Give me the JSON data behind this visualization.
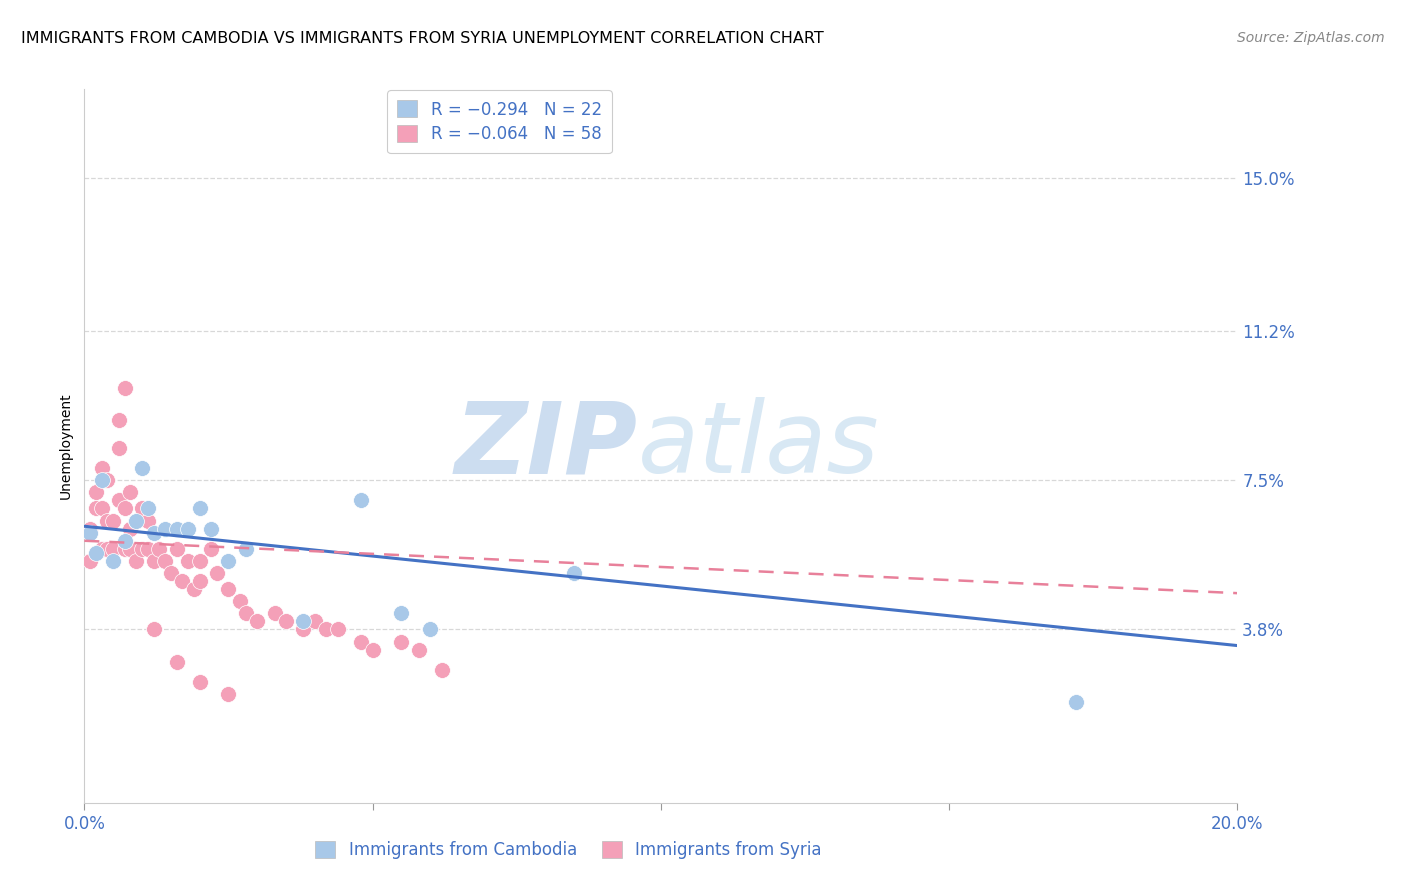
{
  "title": "IMMIGRANTS FROM CAMBODIA VS IMMIGRANTS FROM SYRIA UNEMPLOYMENT CORRELATION CHART",
  "source": "Source: ZipAtlas.com",
  "ylabel": "Unemployment",
  "watermark_zip": "ZIP",
  "watermark_atlas": "atlas",
  "legend": [
    {
      "label": "R = −0.294   N = 22",
      "color": "#a8c8e8"
    },
    {
      "label": "R = −0.064   N = 58",
      "color": "#f4a0b8"
    }
  ],
  "yticks": [
    3.8,
    7.5,
    11.2,
    15.0
  ],
  "xlim": [
    0.0,
    0.2
  ],
  "ylim": [
    -0.005,
    0.172
  ],
  "scatter_cambodia_x": [
    0.001,
    0.002,
    0.003,
    0.005,
    0.007,
    0.009,
    0.01,
    0.011,
    0.012,
    0.014,
    0.016,
    0.018,
    0.02,
    0.022,
    0.025,
    0.028,
    0.038,
    0.048,
    0.055,
    0.06,
    0.085,
    0.172
  ],
  "scatter_cambodia_y": [
    0.062,
    0.057,
    0.075,
    0.055,
    0.06,
    0.065,
    0.078,
    0.068,
    0.062,
    0.063,
    0.063,
    0.063,
    0.068,
    0.063,
    0.055,
    0.058,
    0.04,
    0.07,
    0.042,
    0.038,
    0.052,
    0.02
  ],
  "scatter_syria_x": [
    0.001,
    0.001,
    0.002,
    0.002,
    0.003,
    0.003,
    0.003,
    0.004,
    0.004,
    0.004,
    0.005,
    0.005,
    0.006,
    0.006,
    0.006,
    0.007,
    0.007,
    0.007,
    0.008,
    0.008,
    0.008,
    0.009,
    0.009,
    0.01,
    0.01,
    0.011,
    0.011,
    0.012,
    0.013,
    0.014,
    0.015,
    0.016,
    0.017,
    0.018,
    0.019,
    0.02,
    0.02,
    0.022,
    0.023,
    0.025,
    0.027,
    0.028,
    0.03,
    0.033,
    0.035,
    0.038,
    0.04,
    0.042,
    0.044,
    0.048,
    0.05,
    0.055,
    0.058,
    0.062,
    0.012,
    0.016,
    0.02,
    0.025
  ],
  "scatter_syria_y": [
    0.063,
    0.055,
    0.072,
    0.068,
    0.058,
    0.068,
    0.078,
    0.058,
    0.075,
    0.065,
    0.065,
    0.058,
    0.07,
    0.083,
    0.09,
    0.058,
    0.068,
    0.098,
    0.058,
    0.072,
    0.063,
    0.055,
    0.065,
    0.058,
    0.068,
    0.058,
    0.065,
    0.055,
    0.058,
    0.055,
    0.052,
    0.058,
    0.05,
    0.055,
    0.048,
    0.055,
    0.05,
    0.058,
    0.052,
    0.048,
    0.045,
    0.042,
    0.04,
    0.042,
    0.04,
    0.038,
    0.04,
    0.038,
    0.038,
    0.035,
    0.033,
    0.035,
    0.033,
    0.028,
    0.038,
    0.03,
    0.025,
    0.022
  ],
  "trendline_cambodia_x0": 0.0,
  "trendline_cambodia_y0": 0.0636,
  "trendline_cambodia_x1": 0.2,
  "trendline_cambodia_y1": 0.034,
  "trendline_syria_x0": 0.0,
  "trendline_syria_y0": 0.06,
  "trendline_syria_x1": 0.2,
  "trendline_syria_y1": 0.047,
  "trendline_cambodia_color": "#4472c4",
  "trendline_syria_color": "#e8809a",
  "scatter_color_cambodia": "#a8c8e8",
  "scatter_color_syria": "#f4a0b8",
  "scatter_size": 130,
  "background_color": "#ffffff",
  "title_fontsize": 11.5,
  "source_fontsize": 10,
  "ylabel_fontsize": 10,
  "ytick_color": "#4472c4",
  "xtick_color": "#4472c4",
  "watermark_color": "#ccddf0",
  "grid_color": "#d8d8d8"
}
